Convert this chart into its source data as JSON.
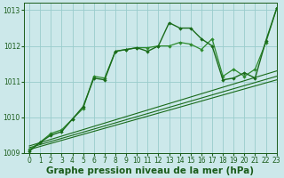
{
  "title": "Graphe pression niveau de la mer (hPa)",
  "background_color": "#cce8ea",
  "grid_color": "#99cccc",
  "line_color_dark": "#1a6b1a",
  "line_color_medium": "#2e8b2e",
  "xlim": [
    -0.5,
    23
  ],
  "ylim": [
    1009.0,
    1013.2
  ],
  "yticks": [
    1009,
    1010,
    1011,
    1012,
    1013
  ],
  "xticks": [
    0,
    1,
    2,
    3,
    4,
    5,
    6,
    7,
    8,
    9,
    10,
    11,
    12,
    13,
    14,
    15,
    16,
    17,
    18,
    19,
    20,
    21,
    22,
    23
  ],
  "tick_fontsize": 5.5,
  "xlabel_fontsize": 7.5,
  "label_color": "#1a5c1a",
  "trend_lines": [
    {
      "x0": 0,
      "y0": 1009.1,
      "x1": 23,
      "y1": 1011.05
    },
    {
      "x0": 0,
      "y0": 1009.15,
      "x1": 23,
      "y1": 1011.15
    },
    {
      "x0": 0,
      "y0": 1009.2,
      "x1": 23,
      "y1": 1011.3
    }
  ],
  "jagged1_x": [
    0,
    1,
    2,
    3,
    4,
    5,
    6,
    7,
    8,
    9,
    10,
    11,
    12,
    13,
    14,
    15,
    16,
    17,
    18,
    19,
    20,
    21,
    22,
    23
  ],
  "jagged1_y": [
    1009.1,
    1009.3,
    1009.55,
    1009.65,
    1009.95,
    1010.25,
    1011.15,
    1011.1,
    1011.85,
    1011.9,
    1011.95,
    1011.95,
    1012.0,
    1012.0,
    1012.1,
    1012.05,
    1011.9,
    1012.2,
    1011.15,
    1011.35,
    1011.15,
    1011.35,
    1012.1,
    1013.05
  ],
  "jagged2_x": [
    0,
    1,
    2,
    3,
    4,
    5,
    6,
    7,
    8,
    9,
    10,
    11,
    12,
    13,
    14,
    15,
    16,
    17,
    18,
    19,
    20,
    21,
    22,
    23
  ],
  "jagged2_y": [
    1009.05,
    1009.3,
    1009.5,
    1009.6,
    1009.95,
    1010.3,
    1011.1,
    1011.05,
    1011.85,
    1011.9,
    1011.95,
    1011.85,
    1012.0,
    1012.65,
    1012.5,
    1012.5,
    1012.2,
    1012.0,
    1011.05,
    1011.1,
    1011.25,
    1011.1,
    1012.15,
    1013.05
  ]
}
